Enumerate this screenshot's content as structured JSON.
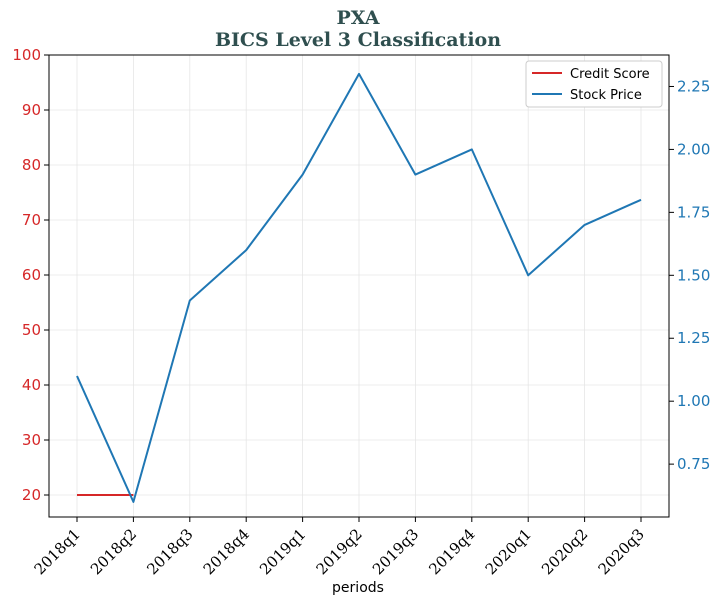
{
  "chart_data": {
    "type": "line",
    "title": "PXA",
    "subtitle": "BICS Level 3 Classification",
    "xlabel": "periods",
    "categories": [
      "2018q1",
      "2018q2",
      "2018q3",
      "2018q4",
      "2019q1",
      "2019q2",
      "2019q3",
      "2019q4",
      "2020q1",
      "2020q2",
      "2020q3"
    ],
    "left_axis": {
      "ylim": [
        16,
        100
      ],
      "ticks": [
        20,
        30,
        40,
        50,
        60,
        70,
        80,
        90,
        100
      ],
      "color": "#d62728"
    },
    "right_axis": {
      "ylim": [
        0.54,
        2.375
      ],
      "ticks": [
        0.75,
        1.0,
        1.25,
        1.5,
        1.75,
        2.0,
        2.25
      ],
      "tick_labels": [
        "0.75",
        "1.00",
        "1.25",
        "1.50",
        "1.75",
        "2.00",
        "2.25"
      ],
      "color": "#1f77b4"
    },
    "grid": true,
    "legend_placement": "top-right",
    "series": [
      {
        "name": "Credit Score",
        "axis": "left",
        "color": "#d62728",
        "values": [
          20,
          20,
          null,
          null,
          null,
          null,
          null,
          null,
          null,
          null,
          null
        ]
      },
      {
        "name": "Stock Price",
        "axis": "right",
        "color": "#1f77b4",
        "values": [
          1.1,
          0.6,
          1.4,
          1.6,
          1.9,
          2.3,
          1.9,
          2.0,
          1.5,
          1.7,
          1.8
        ]
      }
    ]
  }
}
